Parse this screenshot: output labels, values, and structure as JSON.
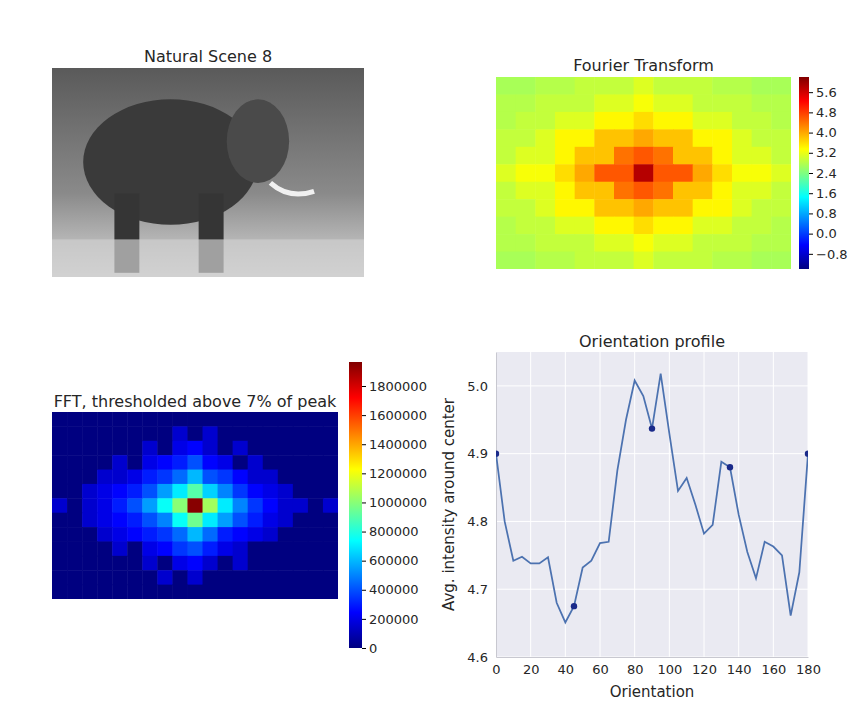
{
  "chart_data": [
    {
      "type": "image",
      "title": "Natural Scene 8"
    },
    {
      "type": "heatmap",
      "title": "Fourier Transform",
      "cells": [
        [
          2.7,
          2.7,
          2.8,
          2.8,
          2.9,
          2.9,
          2.9,
          3.1,
          2.9,
          2.9,
          2.9,
          2.8,
          2.8,
          2.7,
          2.7
        ],
        [
          2.8,
          2.8,
          2.9,
          2.9,
          2.9,
          3.1,
          3.1,
          3.3,
          3.1,
          3.1,
          2.9,
          2.9,
          2.9,
          2.8,
          2.8
        ],
        [
          2.8,
          2.9,
          2.9,
          3.1,
          3.1,
          3.4,
          3.4,
          3.6,
          3.4,
          3.4,
          3.1,
          3.1,
          2.9,
          2.9,
          2.8
        ],
        [
          2.9,
          2.9,
          3.1,
          3.4,
          3.4,
          3.8,
          3.8,
          4.0,
          3.8,
          3.8,
          3.4,
          3.4,
          3.1,
          2.9,
          2.9
        ],
        [
          2.9,
          3.1,
          3.1,
          3.4,
          3.8,
          3.8,
          4.4,
          4.6,
          4.4,
          3.8,
          3.8,
          3.4,
          3.1,
          3.1,
          2.9
        ],
        [
          3.1,
          3.3,
          3.3,
          3.6,
          4.0,
          4.6,
          4.6,
          5.8,
          4.6,
          4.6,
          4.0,
          3.6,
          3.3,
          3.3,
          3.1
        ],
        [
          2.9,
          3.1,
          3.1,
          3.4,
          3.8,
          3.8,
          4.4,
          4.6,
          4.4,
          3.8,
          3.8,
          3.4,
          3.1,
          3.1,
          2.9
        ],
        [
          2.9,
          2.9,
          3.1,
          3.4,
          3.4,
          3.8,
          3.8,
          4.0,
          3.8,
          3.8,
          3.4,
          3.4,
          3.1,
          2.9,
          2.9
        ],
        [
          2.8,
          2.9,
          2.9,
          3.1,
          3.1,
          3.4,
          3.4,
          3.6,
          3.4,
          3.4,
          3.1,
          3.1,
          2.9,
          2.9,
          2.8
        ],
        [
          2.8,
          2.8,
          2.9,
          2.9,
          2.9,
          3.1,
          3.1,
          3.3,
          3.1,
          3.1,
          2.9,
          2.9,
          2.9,
          2.8,
          2.8
        ],
        [
          2.7,
          2.7,
          2.8,
          2.8,
          2.9,
          2.9,
          2.9,
          3.1,
          2.9,
          2.9,
          2.9,
          2.8,
          2.8,
          2.7,
          2.7
        ]
      ],
      "colorbar_lim": [
        -1.4,
        6.2
      ],
      "colorbar_ticks": [
        {
          "value": -0.8,
          "label": "−0.8"
        },
        {
          "value": 0,
          "label": "0.0"
        },
        0.8,
        1.6,
        2.4,
        3.2,
        {
          "value": 4,
          "label": "4.0"
        },
        4.8,
        5.6
      ],
      "tick_labels": false
    },
    {
      "type": "heatmap",
      "title": "FFT, thresholded above 7% of peak",
      "cells": [
        [
          0,
          0,
          0,
          0,
          0,
          0,
          0,
          0,
          0,
          0,
          0,
          0,
          0,
          0,
          0,
          0,
          0,
          0,
          0
        ],
        [
          0,
          0,
          0,
          0,
          0,
          0,
          0,
          0,
          150000,
          0,
          150000,
          0,
          0,
          0,
          0,
          0,
          0,
          0,
          0
        ],
        [
          0,
          0,
          0,
          0,
          0,
          0,
          150000,
          0,
          200000,
          250000,
          150000,
          0,
          150000,
          0,
          0,
          0,
          0,
          0,
          0
        ],
        [
          0,
          0,
          0,
          0,
          150000,
          0,
          200000,
          250000,
          300000,
          400000,
          250000,
          200000,
          0,
          150000,
          0,
          0,
          0,
          0,
          0
        ],
        [
          0,
          0,
          0,
          150000,
          150000,
          200000,
          300000,
          350000,
          450000,
          600000,
          400000,
          350000,
          250000,
          150000,
          150000,
          0,
          0,
          0,
          0
        ],
        [
          0,
          0,
          150000,
          200000,
          250000,
          300000,
          400000,
          550000,
          700000,
          900000,
          650000,
          500000,
          350000,
          250000,
          200000,
          150000,
          0,
          0,
          0
        ],
        [
          150000,
          0,
          150000,
          200000,
          300000,
          400000,
          550000,
          750000,
          1000000,
          1950000,
          1050000,
          700000,
          500000,
          350000,
          250000,
          150000,
          150000,
          0,
          150000
        ],
        [
          0,
          0,
          150000,
          200000,
          250000,
          300000,
          400000,
          500000,
          750000,
          950000,
          700000,
          550000,
          400000,
          300000,
          200000,
          150000,
          0,
          0,
          0
        ],
        [
          0,
          0,
          0,
          150000,
          200000,
          250000,
          300000,
          350000,
          450000,
          600000,
          450000,
          300000,
          250000,
          200000,
          150000,
          0,
          0,
          0,
          0
        ],
        [
          0,
          0,
          0,
          0,
          150000,
          0,
          200000,
          250000,
          350000,
          400000,
          300000,
          200000,
          150000,
          0,
          0,
          0,
          0,
          0,
          0
        ],
        [
          0,
          0,
          0,
          0,
          0,
          0,
          150000,
          0,
          200000,
          250000,
          150000,
          0,
          150000,
          0,
          0,
          0,
          0,
          0,
          0
        ],
        [
          0,
          0,
          0,
          0,
          0,
          0,
          0,
          150000,
          0,
          150000,
          0,
          0,
          0,
          0,
          0,
          0,
          0,
          0,
          0
        ],
        [
          0,
          0,
          0,
          0,
          0,
          0,
          0,
          0,
          0,
          0,
          0,
          0,
          0,
          0,
          0,
          0,
          0,
          0,
          0
        ]
      ],
      "colorbar_lim": [
        0,
        1965000
      ],
      "colorbar_ticks": [
        0,
        200000,
        400000,
        600000,
        800000,
        1000000,
        1200000,
        1400000,
        1600000,
        1800000
      ],
      "tick_labels": false
    },
    {
      "type": "line",
      "title": "Orientation profile",
      "x": [
        0,
        5,
        10,
        15,
        20,
        25,
        30,
        35,
        40,
        45,
        50,
        55,
        60,
        65,
        70,
        75,
        80,
        85,
        90,
        95,
        100,
        105,
        110,
        115,
        120,
        125,
        130,
        135,
        140,
        145,
        150,
        155,
        160,
        165,
        170,
        175,
        180
      ],
      "series": [
        {
          "values": [
            4.9,
            4.8,
            4.742,
            4.748,
            4.738,
            4.738,
            4.747,
            4.68,
            4.651,
            4.675,
            4.732,
            4.742,
            4.768,
            4.77,
            4.875,
            4.95,
            5.008,
            4.985,
            4.937,
            5.018,
            4.93,
            4.845,
            4.864,
            4.825,
            4.782,
            4.795,
            4.888,
            4.88,
            4.81,
            4.755,
            4.716,
            4.77,
            4.763,
            4.75,
            4.661,
            4.725,
            4.9
          ],
          "color": "#4c72b0"
        },
        {
          "type": "scatter",
          "x": [
            0,
            45,
            90,
            135,
            180
          ],
          "values": [
            4.9,
            4.675,
            4.937,
            4.88,
            4.9
          ],
          "color": "#1a2a8a",
          "marker": "circle"
        }
      ],
      "xlabel": "Orientation",
      "ylabel": "Avg. intensity around center",
      "xlim": [
        0,
        180
      ],
      "ylim": [
        4.6,
        5.05
      ],
      "xticks": [
        0,
        20,
        40,
        60,
        80,
        100,
        120,
        140,
        160,
        180
      ],
      "yticks": [
        4.6,
        4.7,
        4.8,
        4.9,
        {
          "value": 5,
          "label": "5.0"
        }
      ],
      "grid": true
    }
  ]
}
